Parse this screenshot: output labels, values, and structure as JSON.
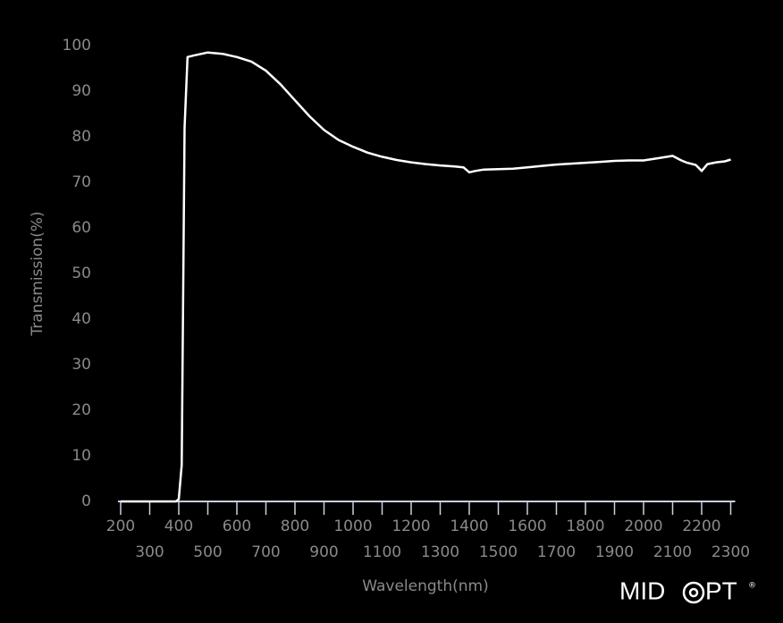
{
  "chart_data": {
    "type": "line",
    "ylabel": "Transmission(%)",
    "xlabel": "Wavelength(nm)",
    "x": [
      200,
      300,
      390,
      400,
      410,
      420,
      430,
      450,
      500,
      550,
      600,
      650,
      700,
      750,
      800,
      850,
      900,
      950,
      1000,
      1050,
      1100,
      1150,
      1200,
      1250,
      1300,
      1350,
      1380,
      1400,
      1420,
      1450,
      1500,
      1550,
      1600,
      1650,
      1700,
      1750,
      1800,
      1850,
      1900,
      1950,
      2000,
      2050,
      2100,
      2130,
      2150,
      2180,
      2200,
      2220,
      2250,
      2280,
      2300
    ],
    "series": [
      {
        "color": "#ffffff",
        "values": [
          0,
          0,
          0,
          0.5,
          8,
          82,
          97.5,
          97.8,
          98.5,
          98.2,
          97.5,
          96.5,
          94.5,
          91.5,
          88,
          84.5,
          81.5,
          79.3,
          77.8,
          76.5,
          75.6,
          74.9,
          74.4,
          74,
          73.7,
          73.5,
          73.3,
          72.2,
          72.5,
          72.8,
          72.9,
          73,
          73.3,
          73.6,
          73.9,
          74.1,
          74.3,
          74.5,
          74.7,
          74.8,
          74.8,
          75.3,
          75.8,
          74.8,
          74.3,
          73.8,
          72.5,
          74,
          74.4,
          74.6,
          75
        ]
      }
    ],
    "xlim": [
      200,
      2300
    ],
    "ylim": [
      0,
      100
    ],
    "xticks": [
      200,
      300,
      400,
      500,
      600,
      700,
      800,
      900,
      1000,
      1100,
      1200,
      1300,
      1400,
      1500,
      1600,
      1700,
      1800,
      1900,
      2000,
      2100,
      2200,
      2300
    ],
    "yticks": [
      0,
      10,
      20,
      30,
      40,
      50,
      60,
      70,
      80,
      90,
      100
    ],
    "logo": {
      "left": "MID",
      "right": "PT",
      "mark": "®"
    }
  }
}
